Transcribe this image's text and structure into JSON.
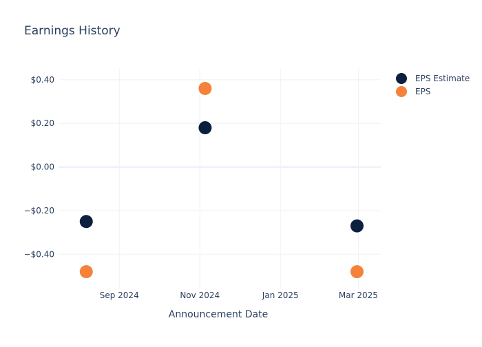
{
  "chart_data": {
    "type": "scatter",
    "title": "Earnings History",
    "xlabel": "Announcement Date",
    "ylabel": "",
    "x_ticks": [
      "Sep 2024",
      "Nov 2024",
      "Jan 2025",
      "Mar 2025"
    ],
    "y_ticks": [
      "$0.40",
      "$0.20",
      "$0.00",
      "−$0.20",
      "−$0.40"
    ],
    "y_tick_values": [
      0.4,
      0.2,
      0.0,
      -0.2,
      -0.4
    ],
    "x_tick_dates": [
      "2024-09-01",
      "2024-11-01",
      "2025-01-01",
      "2025-03-01"
    ],
    "xlim": [
      "2024-07-17",
      "2025-03-18"
    ],
    "ylim": [
      -0.56,
      0.45
    ],
    "legend_position": "top-right",
    "grid": true,
    "series": [
      {
        "name": "EPS Estimate",
        "color": "#0b1f3f",
        "points": [
          {
            "x": "2024-08-07",
            "y": -0.25
          },
          {
            "x": "2024-11-05",
            "y": 0.18
          },
          {
            "x": "2025-02-28",
            "y": -0.27
          }
        ]
      },
      {
        "name": "EPS",
        "color": "#f4823a",
        "points": [
          {
            "x": "2024-08-07",
            "y": -0.48
          },
          {
            "x": "2024-11-05",
            "y": 0.36
          },
          {
            "x": "2025-02-28",
            "y": -0.48
          }
        ]
      }
    ]
  }
}
